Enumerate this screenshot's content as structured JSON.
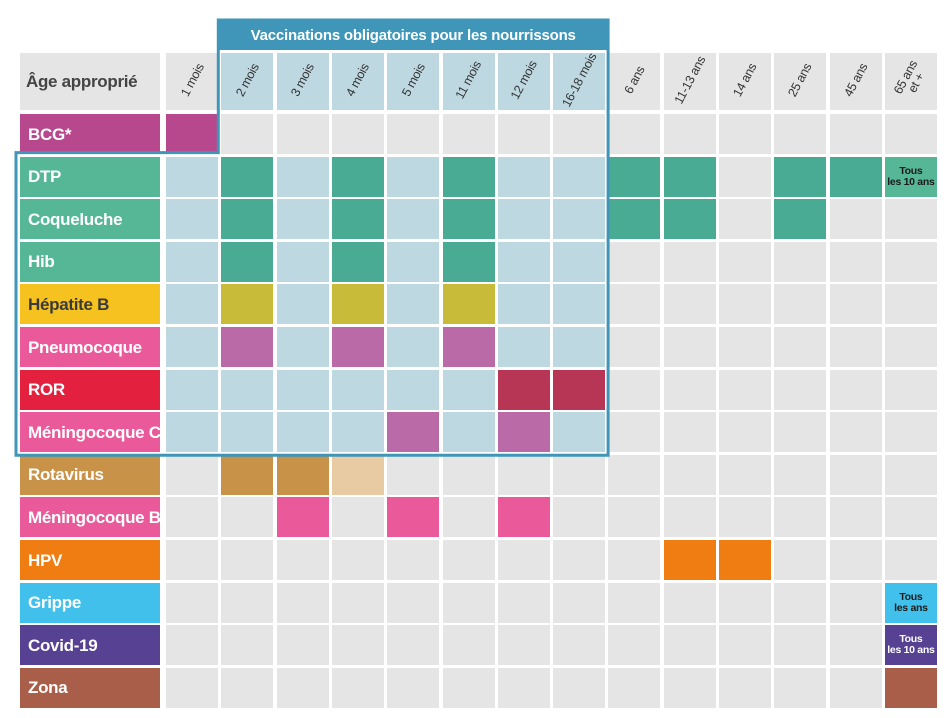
{
  "chart_data": {
    "type": "table",
    "title": "Vaccinations obligatoires pour les nourrissons",
    "corner_label": "Âge approprié",
    "columns": [
      "1 mois",
      "2 mois",
      "3 mois",
      "4 mois",
      "5 mois",
      "11 mois",
      "12 mois",
      "16-18 mois",
      "6 ans",
      "11-13 ans",
      "14 ans",
      "25 ans",
      "45 ans",
      "65 ans\net +"
    ],
    "mandatory_columns": [
      "2 mois",
      "3 mois",
      "4 mois",
      "5 mois",
      "11 mois",
      "12 mois",
      "16-18 mois"
    ],
    "mandatory_rows": [
      "DTP",
      "Coqueluche",
      "Hib",
      "Hépatite B",
      "Pneumocoque",
      "ROR",
      "Méningocoque C"
    ],
    "rows": [
      {
        "name": "BCG*",
        "color": "#b8488e",
        "filled": [
          "1 mois"
        ],
        "shades": {},
        "notes": {}
      },
      {
        "name": "DTP",
        "color": "#55b795",
        "fill_color": "#4aab95",
        "filled": [
          "2 mois",
          "4 mois",
          "11 mois",
          "6 ans",
          "11-13 ans",
          "25 ans",
          "45 ans"
        ],
        "shades": {},
        "notes": {
          "65 ans\net +": "Tous\nles 10 ans"
        },
        "note_style": {
          "bg": "#55b795",
          "fg": "#1a1a1a"
        }
      },
      {
        "name": "Coqueluche",
        "color": "#55b795",
        "fill_color": "#4aab95",
        "filled": [
          "2 mois",
          "4 mois",
          "11 mois",
          "6 ans",
          "11-13 ans",
          "25 ans"
        ],
        "shades": {},
        "notes": {}
      },
      {
        "name": "Hib",
        "color": "#55b795",
        "fill_color": "#4aab95",
        "filled": [
          "2 mois",
          "4 mois",
          "11 mois"
        ],
        "shades": {},
        "notes": {}
      },
      {
        "name": "Hépatite B",
        "color": "#f6c21f",
        "fill_color": "#c9bb3a",
        "label_text_color": "#3a3a3a",
        "filled": [
          "2 mois",
          "4 mois",
          "11 mois"
        ],
        "shades": {},
        "notes": {}
      },
      {
        "name": "Pneumocoque",
        "color": "#ea5a9b",
        "fill_color": "#bb6aa8",
        "filled": [
          "2 mois",
          "4 mois",
          "11 mois"
        ],
        "shades": {},
        "notes": {}
      },
      {
        "name": "ROR",
        "color": "#e3213f",
        "fill_color": "#b83655",
        "filled": [
          "12 mois",
          "16-18 mois"
        ],
        "shades": {},
        "notes": {}
      },
      {
        "name": "Méningocoque C",
        "color": "#ea5a9b",
        "fill_color": "#bb6aa8",
        "filled": [
          "5 mois",
          "12 mois"
        ],
        "shades": {},
        "notes": {}
      },
      {
        "name": "Rotavirus",
        "color": "#c99249",
        "fill_color": "#c99249",
        "filled": [
          "2 mois",
          "3 mois"
        ],
        "shades": {
          "4 mois": "#e8cba3"
        },
        "notes": {}
      },
      {
        "name": "Méningocoque B",
        "color": "#ea5a9b",
        "fill_color": "#ea5a9b",
        "filled": [
          "3 mois",
          "5 mois",
          "12 mois"
        ],
        "shades": {},
        "notes": {}
      },
      {
        "name": "HPV",
        "color": "#ef7d12",
        "fill_color": "#ef7d12",
        "filled": [
          "11-13 ans",
          "14 ans"
        ],
        "shades": {},
        "notes": {}
      },
      {
        "name": "Grippe",
        "color": "#40c0ea",
        "fill_color": "#40c0ea",
        "filled": [],
        "shades": {},
        "notes": {
          "65 ans\net +": "Tous\nles ans"
        },
        "note_style": {
          "bg": "#40c0ea",
          "fg": "#1a1a1a"
        }
      },
      {
        "name": "Covid-19",
        "color": "#574193",
        "fill_color": "#574193",
        "filled": [],
        "shades": {},
        "notes": {
          "65 ans\net +": "Tous\nles 10 ans"
        },
        "note_style": {
          "bg": "#574193",
          "fg": "#ffffff"
        }
      },
      {
        "name": "Zona",
        "color": "#a85e48",
        "fill_color": "#a85e48",
        "filled": [
          "65 ans\net +"
        ],
        "shades": {},
        "notes": {}
      }
    ],
    "palette": {
      "empty_cell": "#e5e5e5",
      "highlight_cell": "#bed8e1",
      "highlight_border": "#3f96b9",
      "header_bg": "#e5e5e5",
      "header_text": "#444444"
    }
  }
}
